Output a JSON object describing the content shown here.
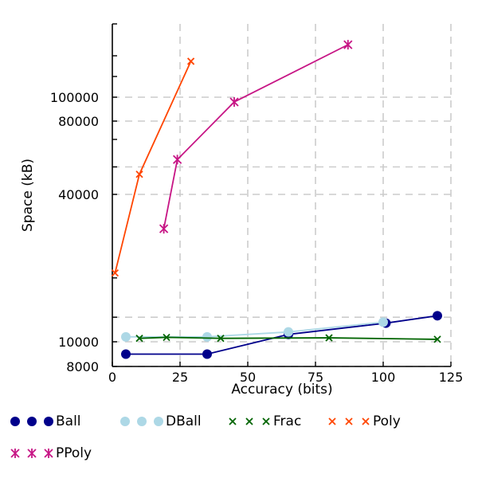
{
  "chart_data": {
    "type": "line",
    "title": "",
    "xlabel": "Accuracy (bits)",
    "ylabel": "Space (kB)",
    "xlim": [
      0,
      125
    ],
    "ylim": [
      8000,
      145000
    ],
    "xticks": [
      0,
      25,
      50,
      75,
      100,
      125
    ],
    "yticks_labeled": [
      8000,
      10000,
      40000,
      80000,
      100000
    ],
    "ytick_positions": [
      8000,
      10000,
      40000,
      80000,
      100000
    ],
    "grid": true,
    "legend_position": "bottom",
    "series": [
      {
        "name": "Ball",
        "marker": "circle",
        "color": "#00008b",
        "x": [
          5,
          35,
          65,
          101,
          120
        ],
        "y": [
          9000,
          9000,
          11500,
          13800,
          15300
        ]
      },
      {
        "name": "DBall",
        "marker": "circle",
        "color": "#add8e6",
        "x": [
          5,
          35,
          65,
          100
        ],
        "y": [
          11000,
          11000,
          12000,
          14000
        ]
      },
      {
        "name": "Frac",
        "marker": "x",
        "color": "#006400",
        "x": [
          10,
          20,
          40,
          80,
          120
        ],
        "y": [
          10700,
          10900,
          10700,
          10800,
          10500
        ]
      },
      {
        "name": "Poly",
        "marker": "x",
        "color": "#ff4500",
        "x": [
          1,
          10,
          29
        ],
        "y": [
          24000,
          51000,
          126000
        ]
      },
      {
        "name": "PPoly",
        "marker": "asterisk",
        "color": "#c71585",
        "x": [
          19,
          24,
          45,
          87
        ],
        "y": [
          33000,
          59000,
          96000,
          138000
        ]
      }
    ]
  }
}
